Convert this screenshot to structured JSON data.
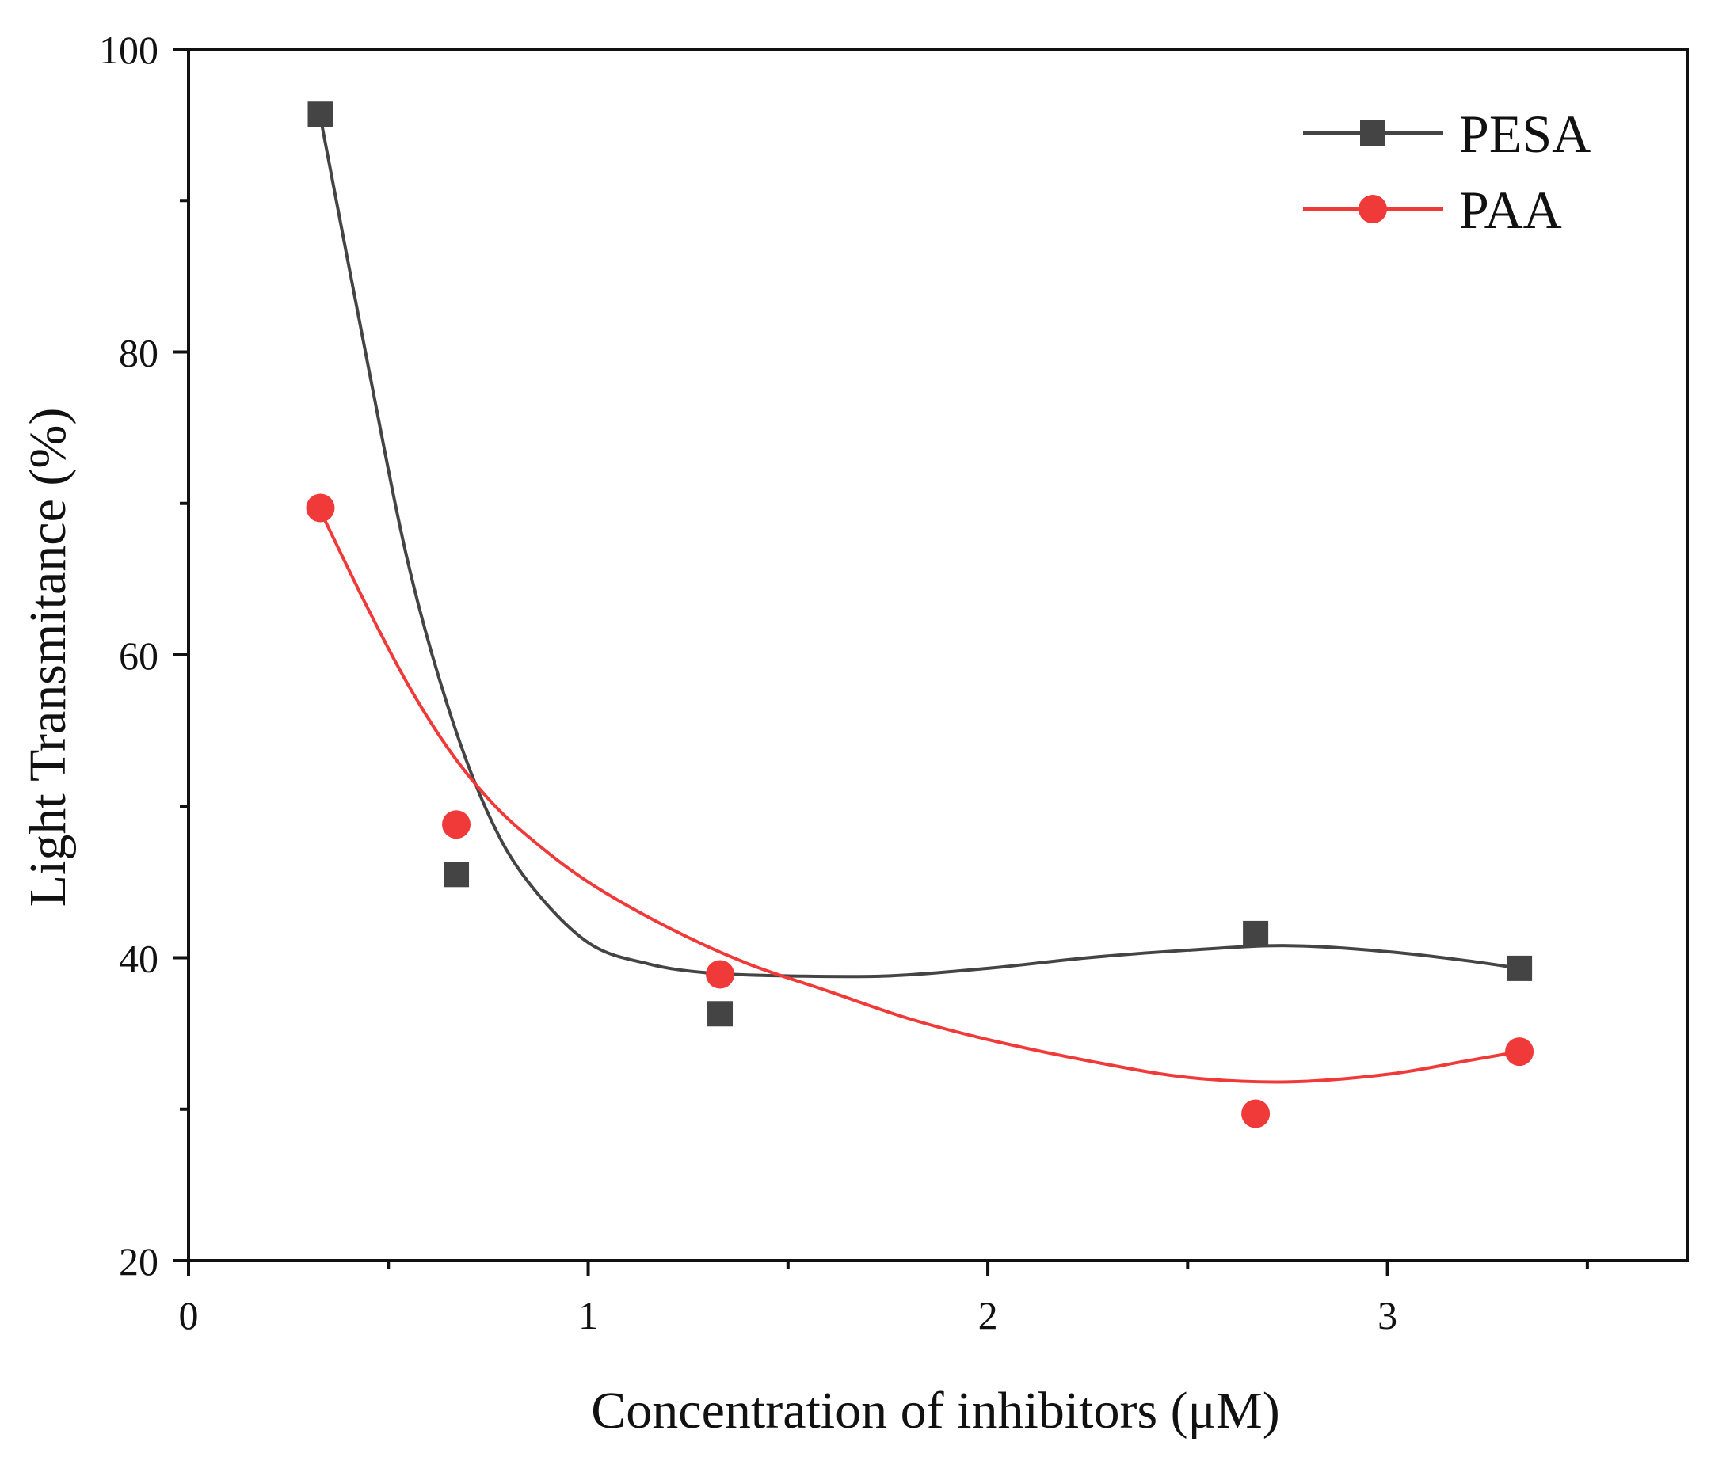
{
  "chart_data": {
    "type": "scatter",
    "title": "",
    "xlabel": "Concentration of inhibitors (μM)",
    "ylabel": "Light Transmitance (%)",
    "xlim": [
      0,
      3.75
    ],
    "ylim": [
      20,
      100
    ],
    "x_ticks": [
      0,
      1,
      2,
      3
    ],
    "x_tick_labels": [
      "0",
      "1",
      "2",
      "3"
    ],
    "x_minor_ticks": [
      0.5,
      1.5,
      2.5,
      3.5
    ],
    "y_ticks": [
      20,
      40,
      60,
      80,
      100
    ],
    "y_tick_labels": [
      "20",
      "40",
      "60",
      "80",
      "100"
    ],
    "y_minor_ticks": [
      30,
      50,
      70,
      90
    ],
    "grid": false,
    "legend_position": "top-right",
    "series": [
      {
        "name": "PESA",
        "marker": "square",
        "color": "#444444",
        "x": [
          0.33,
          0.67,
          1.33,
          2.67,
          3.33
        ],
        "y": [
          95.7,
          45.5,
          36.3,
          41.6,
          39.3
        ],
        "fit_curve": {
          "x": [
            0.33,
            0.45,
            0.55,
            0.65,
            0.75,
            0.85,
            1.0,
            1.15,
            1.3,
            1.5,
            1.75,
            2.0,
            2.25,
            2.5,
            2.75,
            3.0,
            3.2,
            3.33
          ],
          "y": [
            95.5,
            79,
            66,
            56.5,
            49.5,
            45,
            41,
            39.6,
            39,
            38.8,
            38.8,
            39.3,
            40,
            40.5,
            40.8,
            40.4,
            39.8,
            39.3
          ]
        }
      },
      {
        "name": "PAA",
        "marker": "circle",
        "color": "#f03a3a",
        "x": [
          0.33,
          0.67,
          1.33,
          2.67,
          3.33
        ],
        "y": [
          69.7,
          48.8,
          38.9,
          29.7,
          33.8
        ],
        "fit_curve": {
          "x": [
            0.33,
            0.45,
            0.55,
            0.65,
            0.75,
            0.85,
            1.0,
            1.2,
            1.4,
            1.6,
            1.8,
            2.0,
            2.25,
            2.5,
            2.75,
            3.0,
            3.2,
            3.33
          ],
          "y": [
            69.5,
            63,
            58,
            53.8,
            50.5,
            48,
            45,
            42,
            39.6,
            37.8,
            36,
            34.6,
            33.2,
            32.1,
            31.8,
            32.3,
            33.2,
            33.8
          ]
        }
      }
    ]
  }
}
